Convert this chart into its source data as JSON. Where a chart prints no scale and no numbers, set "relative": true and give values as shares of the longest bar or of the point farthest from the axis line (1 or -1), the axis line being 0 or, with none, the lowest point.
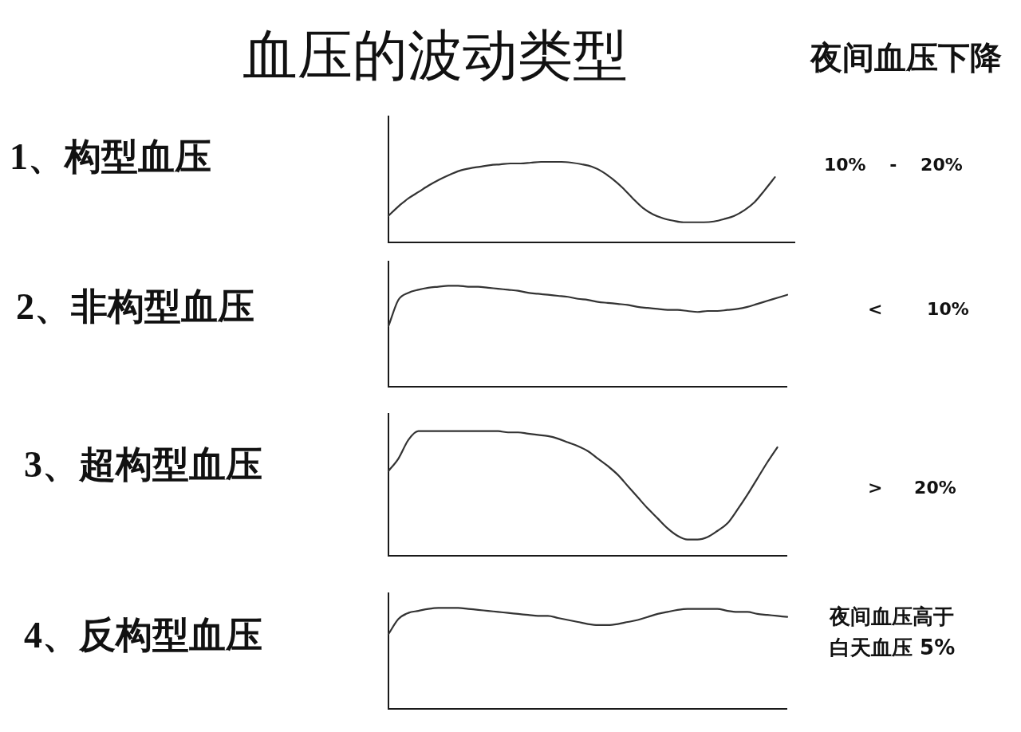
{
  "chart_data": [
    {
      "type": "other",
      "title": "血压的波动类型",
      "annotations": [
        "夜间血压下降"
      ]
    },
    {
      "type": "line",
      "title": "1、构型血压",
      "relative": true,
      "color": "#333333",
      "annotations": [
        "10% - 20%"
      ],
      "categories": [
        null,
        null,
        null,
        null,
        null,
        null,
        null,
        null,
        null,
        null,
        null,
        null,
        null,
        null,
        null,
        null,
        null,
        null,
        null,
        null,
        null,
        null,
        null,
        null,
        null,
        null,
        null,
        null,
        null,
        null,
        null,
        null,
        null,
        null,
        null,
        null,
        null,
        null,
        null,
        null,
        null
      ],
      "values": [
        0.33,
        0.45,
        0.55,
        0.63,
        0.71,
        0.78,
        0.84,
        0.89,
        0.92,
        0.94,
        0.96,
        0.97,
        0.98,
        0.98,
        0.99,
        1.0,
        1.0,
        1.0,
        0.99,
        0.97,
        0.94,
        0.88,
        0.79,
        0.68,
        0.55,
        0.43,
        0.35,
        0.3,
        0.27,
        0.25,
        0.25,
        0.25,
        0.26,
        0.29,
        0.33,
        0.4,
        0.5,
        0.65,
        0.81,
        null,
        null
      ]
    },
    {
      "type": "line",
      "title": "2、非构型血压",
      "relative": true,
      "color": "#333333",
      "annotations": [
        "< 10%"
      ],
      "categories": [
        null,
        null,
        null,
        null,
        null,
        null,
        null,
        null,
        null,
        null,
        null,
        null,
        null,
        null,
        null,
        null,
        null,
        null,
        null,
        null,
        null,
        null,
        null,
        null,
        null,
        null,
        null,
        null,
        null,
        null,
        null,
        null,
        null,
        null,
        null,
        null,
        null,
        null,
        null,
        null,
        null
      ],
      "values": [
        0.6,
        0.86,
        0.93,
        0.96,
        0.98,
        0.99,
        1.0,
        1.0,
        0.99,
        0.99,
        0.98,
        0.97,
        0.96,
        0.95,
        0.93,
        0.92,
        0.91,
        0.9,
        0.89,
        0.87,
        0.86,
        0.84,
        0.83,
        0.82,
        0.81,
        0.79,
        0.78,
        0.77,
        0.76,
        0.76,
        0.75,
        0.74,
        0.75,
        0.75,
        0.76,
        0.77,
        0.79,
        0.82,
        0.85,
        0.88,
        0.91
      ]
    },
    {
      "type": "line",
      "title": "3、超构型血压",
      "relative": true,
      "color": "#333333",
      "annotations": [
        "> 20%"
      ],
      "categories": [
        null,
        null,
        null,
        null,
        null,
        null,
        null,
        null,
        null,
        null,
        null,
        null,
        null,
        null,
        null,
        null,
        null,
        null,
        null,
        null,
        null,
        null,
        null,
        null,
        null,
        null,
        null,
        null,
        null,
        null,
        null,
        null,
        null,
        null,
        null,
        null,
        null,
        null,
        null,
        null,
        null
      ],
      "values": [
        0.68,
        0.78,
        0.93,
        1.0,
        1.0,
        1.0,
        1.0,
        1.0,
        1.0,
        1.0,
        1.0,
        1.0,
        0.99,
        0.99,
        0.98,
        0.97,
        0.96,
        0.94,
        0.91,
        0.88,
        0.84,
        0.78,
        0.72,
        0.65,
        0.56,
        0.47,
        0.38,
        0.3,
        0.22,
        0.16,
        0.13,
        0.13,
        0.15,
        0.2,
        0.26,
        0.37,
        0.49,
        0.62,
        0.75,
        0.87,
        null
      ]
    },
    {
      "type": "line",
      "title": "4、反构型血压",
      "relative": true,
      "color": "#333333",
      "annotations": [
        "夜间血压高于白天血压 5%"
      ],
      "categories": [
        null,
        null,
        null,
        null,
        null,
        null,
        null,
        null,
        null,
        null,
        null,
        null,
        null,
        null,
        null,
        null,
        null,
        null,
        null,
        null,
        null,
        null,
        null,
        null,
        null,
        null,
        null,
        null,
        null,
        null,
        null,
        null,
        null,
        null,
        null,
        null,
        null,
        null,
        null,
        null,
        null
      ],
      "values": [
        0.74,
        0.89,
        0.95,
        0.97,
        0.99,
        1.0,
        1.0,
        1.0,
        0.99,
        0.98,
        0.97,
        0.96,
        0.95,
        0.94,
        0.93,
        0.92,
        0.92,
        0.9,
        0.88,
        0.86,
        0.84,
        0.83,
        0.83,
        0.84,
        0.86,
        0.88,
        0.91,
        0.94,
        0.96,
        0.98,
        0.99,
        0.99,
        0.99,
        0.99,
        0.97,
        0.96,
        0.96,
        0.94,
        0.93,
        0.92,
        0.91
      ]
    }
  ]
}
